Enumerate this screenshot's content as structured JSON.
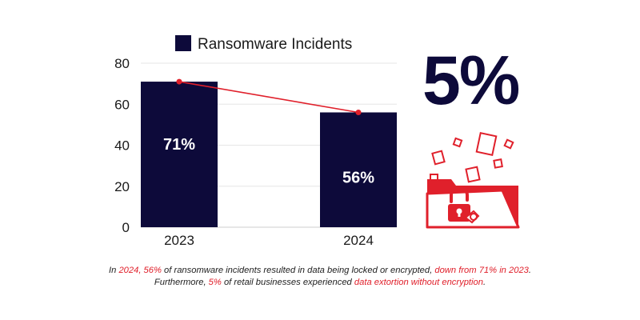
{
  "chart_data": {
    "type": "bar",
    "categories": [
      "2023",
      "2024"
    ],
    "series": [
      {
        "name": "Ransomware Incidents",
        "values": [
          71,
          56
        ]
      }
    ],
    "data_labels": [
      "71%",
      "56%"
    ],
    "line_overlay": {
      "values": [
        71,
        56
      ]
    },
    "ylim": [
      0,
      80
    ],
    "yticks": [
      0,
      20,
      40,
      60,
      80
    ],
    "legend": "top",
    "grid": true,
    "colors": {
      "bar": "#0d0a3a",
      "line": "#e0202b",
      "grid": "#e6e6e6"
    }
  },
  "stat": {
    "value": "5%",
    "color": "#0d0a3a"
  },
  "icon": {
    "name": "broken-lock-folder-icon",
    "color": "#e0202b"
  },
  "caption": {
    "p1": "In ",
    "h1": "2024, 56%",
    "p2": " of ransomware incidents resulted in data being locked or encrypted, ",
    "h2": "down from 71% in 2023",
    "p3": ". Furthermore, ",
    "h3": "5%",
    "p4": " of retail businesses experienced ",
    "h4": "data extortion without encryption",
    "p5": "."
  }
}
